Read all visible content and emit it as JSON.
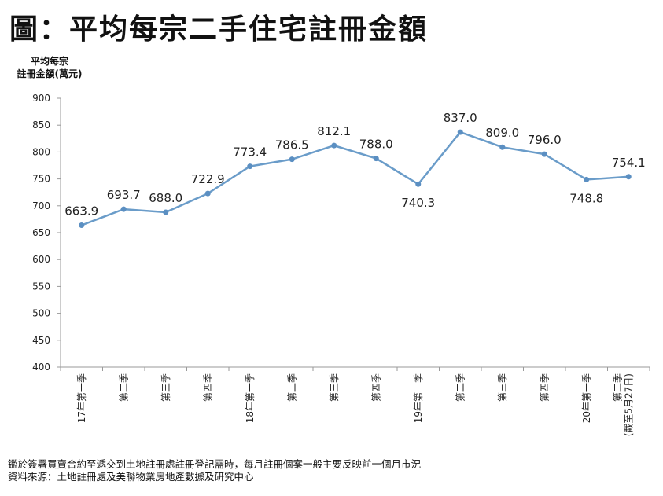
{
  "title": "圖：平均每宗二手住宅註冊金額",
  "ylabel_lines": [
    "平均每宗",
    "註冊金額(萬元)"
  ],
  "footnote": {
    "line1": "鑑於簽署買賣合約至遞交到土地註冊處註冊登記需時，每月註冊個案一般主要反映前一個月市況",
    "line2": "資料來源：土地註冊處及美聯物業房地產數據及研究中心"
  },
  "colors": {
    "line": "#6a9cc9",
    "marker": "#5b8fc2",
    "axis": "#9a9a9a"
  },
  "chart_data": {
    "type": "line",
    "ylabel": "平均每宗註冊金額(萬元)",
    "ylim": [
      400,
      900
    ],
    "yticks": [
      400,
      450,
      500,
      550,
      600,
      650,
      700,
      750,
      800,
      850,
      900
    ],
    "grid": false,
    "categories": [
      [
        "17年第一季"
      ],
      [
        "第二季"
      ],
      [
        "第三季"
      ],
      [
        "第四季"
      ],
      [
        "18年第一季"
      ],
      [
        "第二季"
      ],
      [
        "第三季"
      ],
      [
        "第四季"
      ],
      [
        "19年第一季"
      ],
      [
        "第二季"
      ],
      [
        "第三季"
      ],
      [
        "第四季"
      ],
      [
        "20年第一季"
      ],
      [
        "第二季",
        "(截至5月27日)"
      ]
    ],
    "values": [
      663.9,
      693.7,
      688.0,
      722.9,
      773.4,
      786.5,
      812.1,
      788.0,
      740.3,
      837.0,
      809.0,
      796.0,
      748.8,
      754.1
    ],
    "data_labels": [
      "663.9",
      "693.7",
      "688.0",
      "722.9",
      "773.4",
      "786.5",
      "812.1",
      "788.0",
      "740.3",
      "837.0",
      "809.0",
      "796.0",
      "748.8",
      "754.1"
    ],
    "label_below": [
      false,
      false,
      false,
      false,
      false,
      false,
      false,
      false,
      true,
      false,
      false,
      false,
      true,
      false
    ]
  }
}
